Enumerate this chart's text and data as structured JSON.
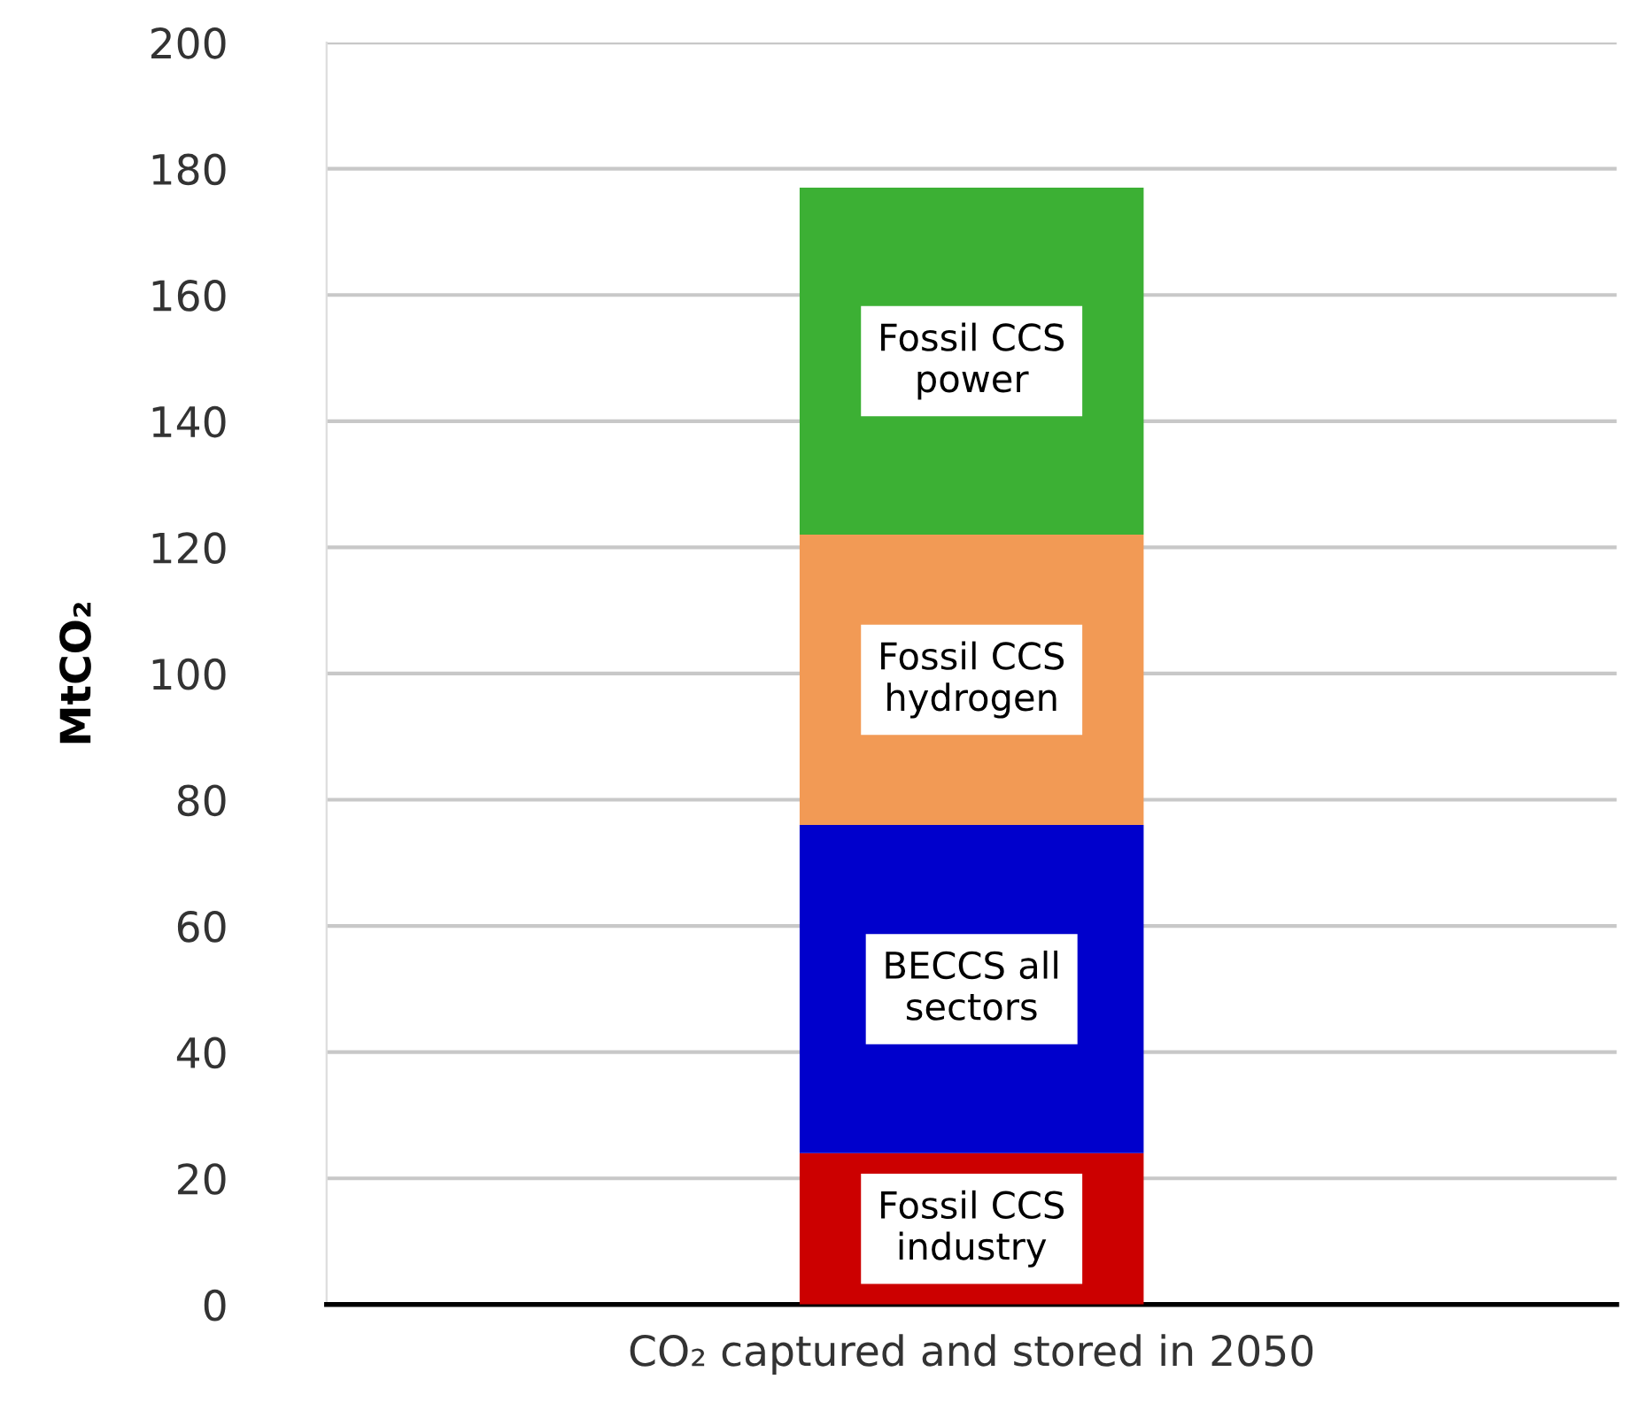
{
  "chart_data": {
    "type": "bar",
    "stacked": true,
    "ylabel": "MtCO₂",
    "categories": [
      "CO₂ captured and stored in 2050"
    ],
    "series": [
      {
        "name": "Fossil CCS\nindustry",
        "color": "#cc0000",
        "values": [
          24
        ]
      },
      {
        "name": "BECCS all\nsectors",
        "color": "#0000cc",
        "values": [
          52
        ]
      },
      {
        "name": "Fossil CCS\nhydrogen",
        "color": "#f29a55",
        "values": [
          46
        ]
      },
      {
        "name": "Fossil CCS\npower",
        "color": "#3cb034",
        "values": [
          55
        ]
      }
    ],
    "ylim": [
      0,
      200
    ],
    "yticks": [
      0,
      20,
      40,
      60,
      80,
      100,
      120,
      140,
      160,
      180,
      200
    ],
    "grid": "y",
    "legend": false
  }
}
